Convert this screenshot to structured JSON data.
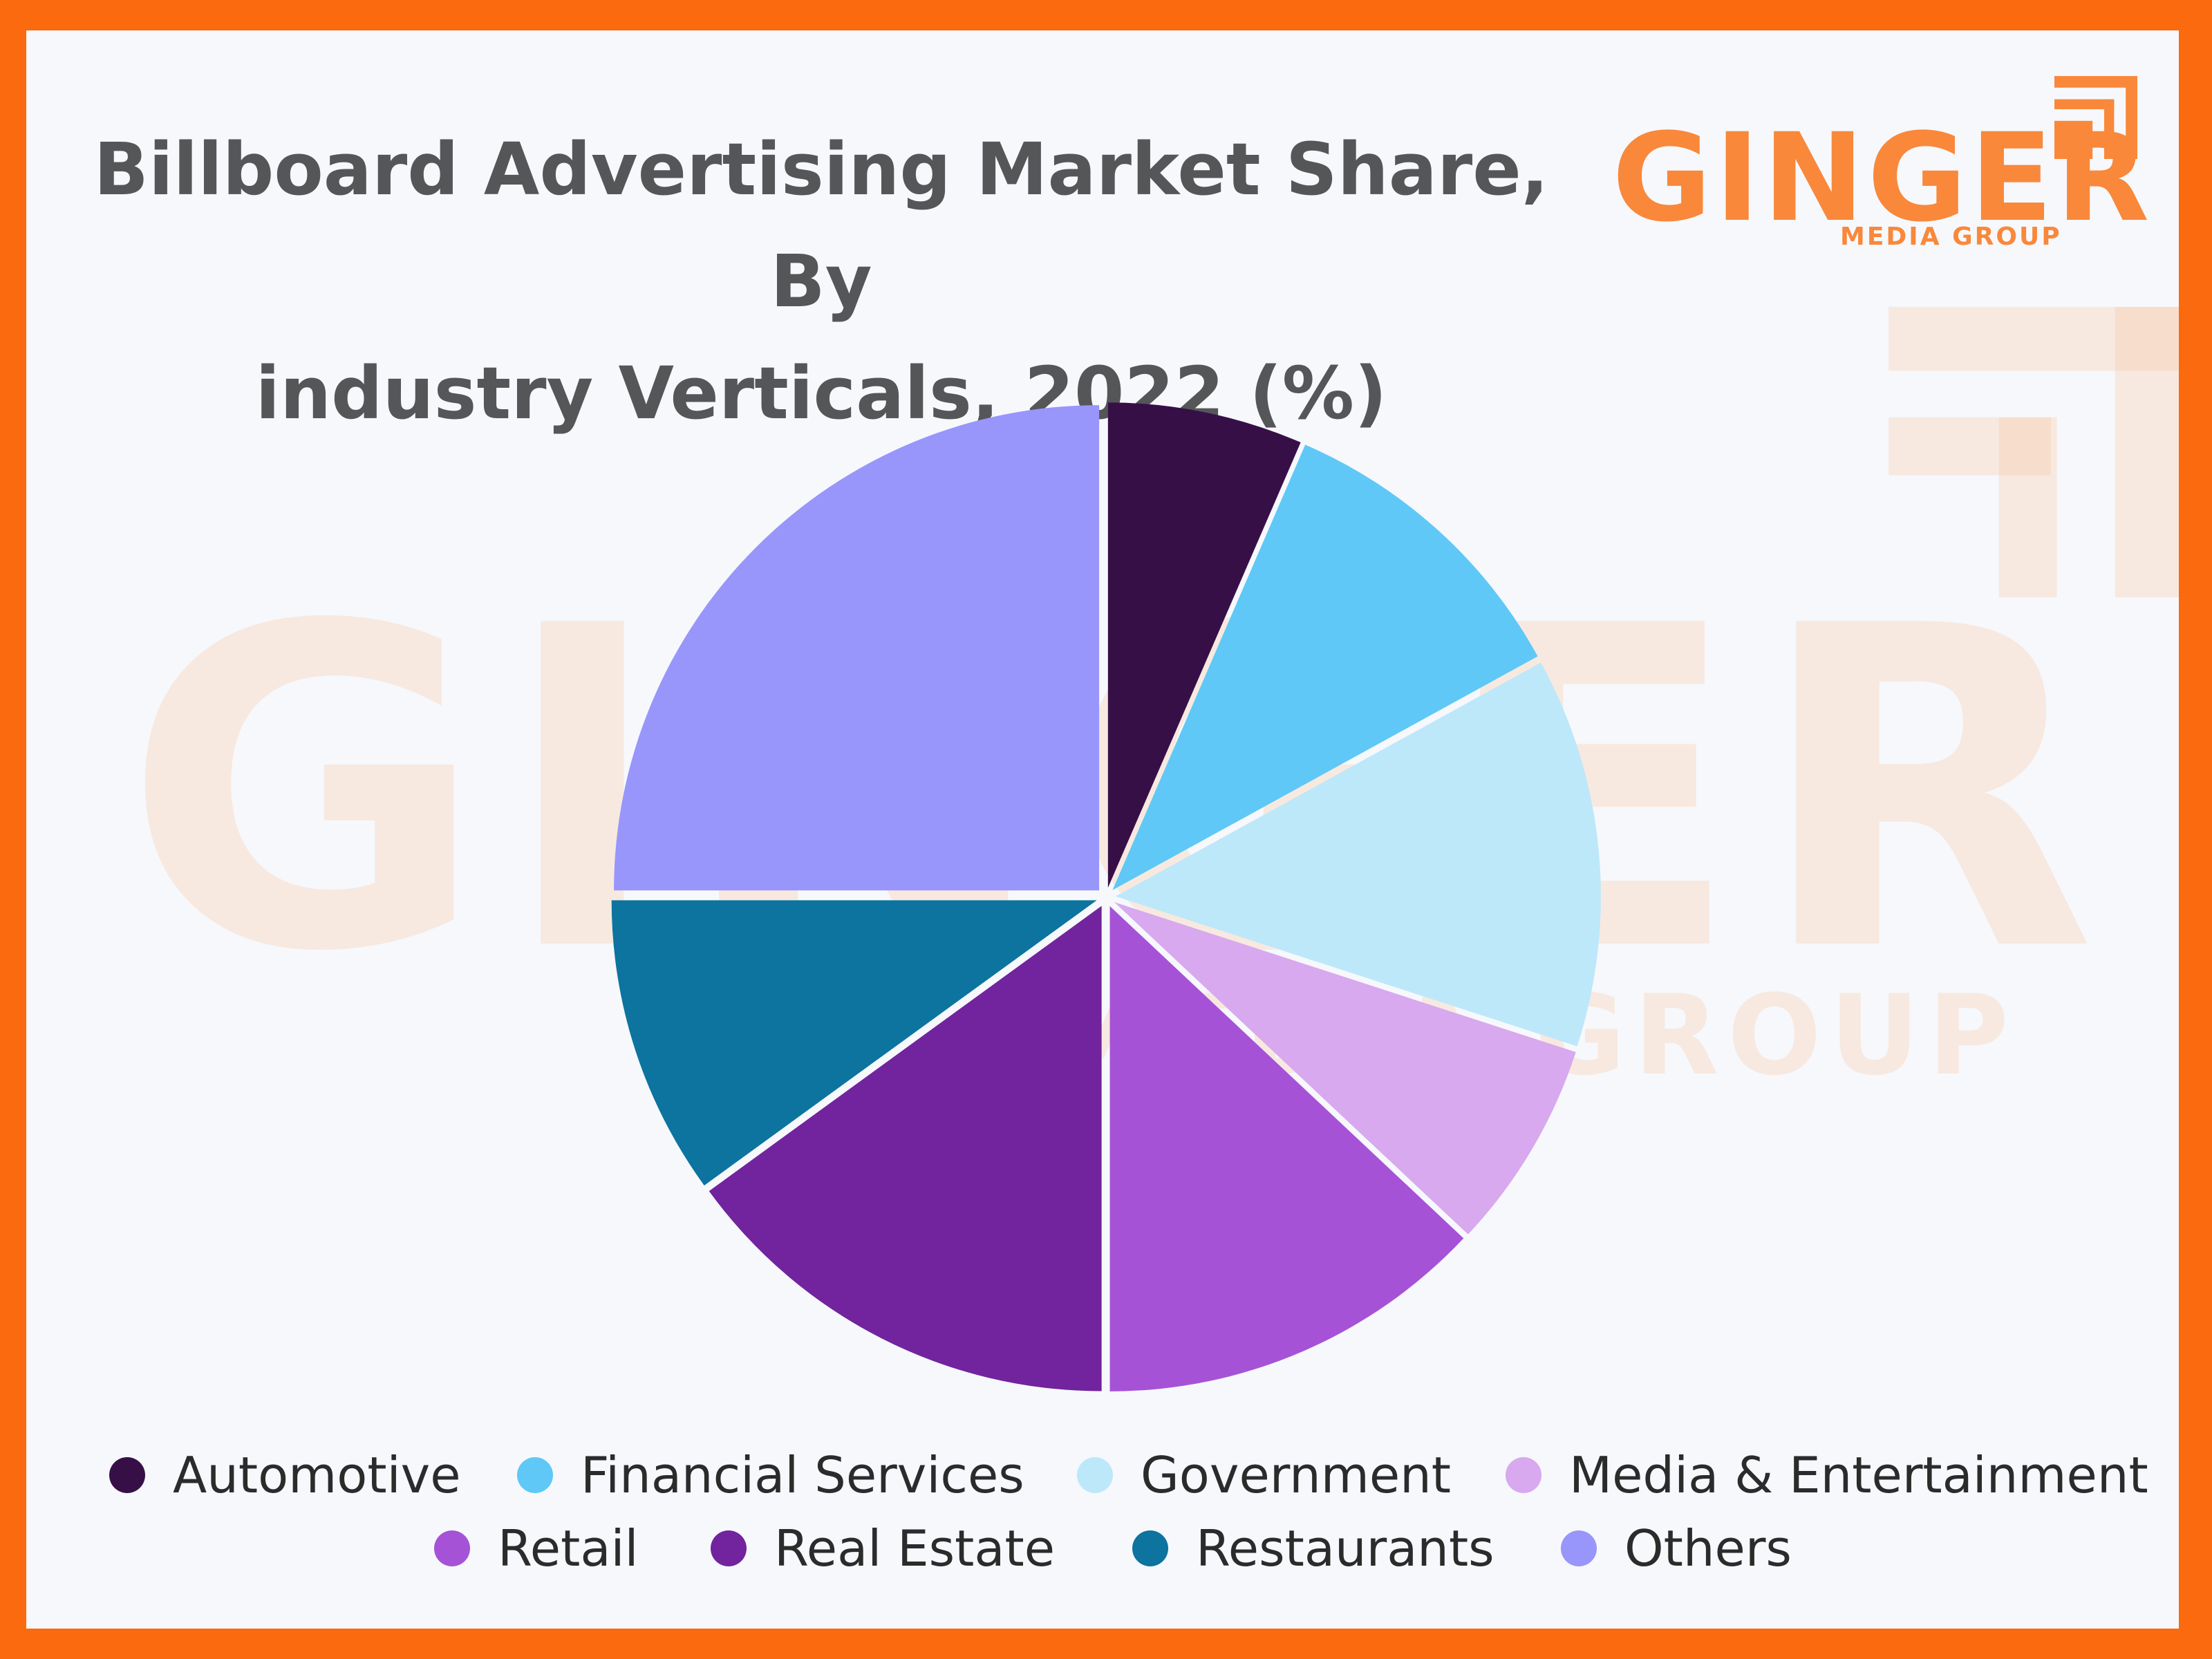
{
  "header": {
    "title_line1": "Billboard Advertising Market Share, By",
    "title_line2": "industry Verticals, 2022 (%)"
  },
  "logo": {
    "word": "GINGER",
    "sub": "MEDIA GROUP",
    "color": "#f9883b"
  },
  "chart_data": {
    "type": "pie",
    "title": "Billboard Advertising Market Share, By industry Verticals, 2022 (%)",
    "legend_position": "bottom",
    "slices": [
      {
        "label": "Automotive",
        "value": 6.5,
        "color": "#370f47"
      },
      {
        "label": "Financial Services",
        "value": 10.5,
        "color": "#5fc8f6"
      },
      {
        "label": "Government",
        "value": 13,
        "color": "#bde8fa"
      },
      {
        "label": "Media & Entertainment",
        "value": 7,
        "color": "#d8a9ee"
      },
      {
        "label": "Retail",
        "value": 13,
        "color": "#a652d7"
      },
      {
        "label": "Real Estate",
        "value": 15,
        "color": "#72239e"
      },
      {
        "label": "Restaurants",
        "value": 10,
        "color": "#0c749e"
      },
      {
        "label": "Others",
        "value": 25,
        "color": "#9896fb"
      }
    ]
  }
}
